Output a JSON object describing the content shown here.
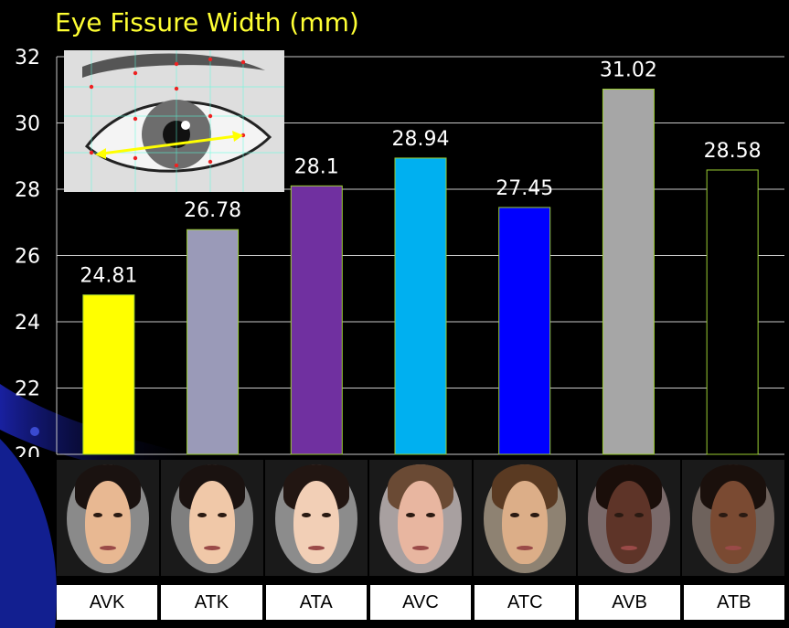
{
  "chart_data": {
    "type": "bar",
    "title": "Eye Fissure Width (mm)",
    "categories": [
      "AVK",
      "ATK",
      "ATA",
      "AVC",
      "ATC",
      "AVB",
      "ATB"
    ],
    "values": [
      24.81,
      26.78,
      28.1,
      28.94,
      27.45,
      31.02,
      28.58
    ],
    "value_labels": [
      "24.81",
      "26.78",
      "28.1",
      "28.94",
      "27.45",
      "31.02",
      "28.58"
    ],
    "bar_colors": [
      "#ffff00",
      "#9a9ab8",
      "#7030a0",
      "#00b0f0",
      "#0000ff",
      "#a6a6a6",
      "#000000"
    ],
    "ylim": [
      20,
      32
    ],
    "yticks": [
      20,
      22,
      24,
      26,
      28,
      30,
      32
    ],
    "ytick_labels": [
      "20",
      "22",
      "24",
      "26",
      "28",
      "30",
      "32"
    ],
    "grid": true
  },
  "colors": {
    "title": "#ffff33",
    "axis_text": "#ffffff",
    "grid": "#c8c8c8",
    "bar_outline": "#9acd32",
    "background": "#000000"
  },
  "faces": [
    {
      "name": "AVK",
      "skin": "#e8b892",
      "hair": "#1a1210",
      "bg": "#8a8a8a"
    },
    {
      "name": "ATK",
      "skin": "#f0c8a8",
      "hair": "#1a1210",
      "bg": "#7f7f7f"
    },
    {
      "name": "ATA",
      "skin": "#f2cfb6",
      "hair": "#221612",
      "bg": "#8c8c8c"
    },
    {
      "name": "AVC",
      "skin": "#e8b6a0",
      "hair": "#6a4a34",
      "bg": "#a8a0a0"
    },
    {
      "name": "ATC",
      "skin": "#dcae88",
      "hair": "#5a3a22",
      "bg": "#8e8272"
    },
    {
      "name": "AVB",
      "skin": "#5e3428",
      "hair": "#1a0e0a",
      "bg": "#7a6a6a"
    },
    {
      "name": "ATB",
      "skin": "#7a4a32",
      "hair": "#1a100c",
      "bg": "#6e625c"
    }
  ],
  "inset_image": "eye-diagram-with-yellow-measurement-arrow"
}
